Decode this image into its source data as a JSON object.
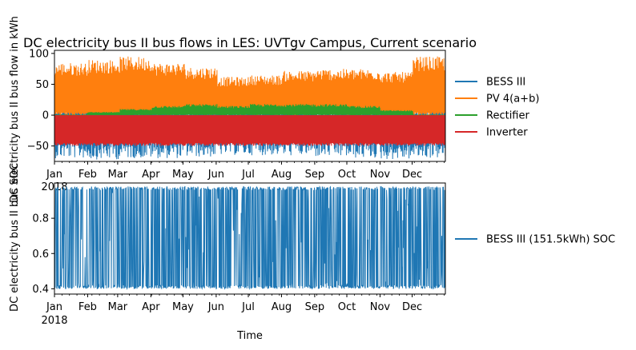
{
  "chart_data": [
    {
      "type": "line",
      "title": "DC electricity bus II bus flows in LES: UVTgv Campus, Current scenario",
      "xlabel": "",
      "ylabel": "DC electricity bus II bus flow in kWh",
      "x_tick_labels": [
        "Jan",
        "Feb",
        "Mar",
        "Apr",
        "May",
        "Jun",
        "Jul",
        "Aug",
        "Sep",
        "Oct",
        "Nov",
        "Dec"
      ],
      "x_year_label": "2018",
      "yticks": [
        -50,
        0,
        50,
        100
      ],
      "ylim": [
        -75,
        105
      ],
      "legend_position": "right",
      "months": [
        "Jan",
        "Feb",
        "Mar",
        "Apr",
        "May",
        "Jun",
        "Jul",
        "Aug",
        "Sep",
        "Oct",
        "Nov",
        "Dec"
      ],
      "series": [
        {
          "name": "BESS III",
          "color": "#1f77b4",
          "monthly_max": [
            15,
            10,
            12,
            8,
            6,
            5,
            5,
            6,
            8,
            10,
            12,
            15
          ],
          "monthly_min": [
            -70,
            -72,
            -70,
            -70,
            -68,
            -65,
            -65,
            -66,
            -68,
            -70,
            -72,
            -70
          ]
        },
        {
          "name": "PV 4(a+b)",
          "color": "#ff7f0e",
          "monthly_max": [
            85,
            90,
            95,
            85,
            78,
            62,
            65,
            72,
            75,
            75,
            70,
            95
          ],
          "monthly_min": [
            0,
            0,
            0,
            0,
            0,
            0,
            0,
            0,
            0,
            0,
            0,
            0
          ]
        },
        {
          "name": "Rectifier",
          "color": "#2ca02c",
          "monthly_max": [
            0,
            5,
            10,
            15,
            18,
            15,
            18,
            18,
            18,
            15,
            8,
            0
          ],
          "monthly_min": [
            0,
            0,
            0,
            0,
            0,
            0,
            0,
            0,
            0,
            0,
            0,
            0
          ]
        },
        {
          "name": "Inverter",
          "color": "#d62728",
          "monthly_max": [
            0,
            0,
            0,
            0,
            0,
            0,
            0,
            0,
            0,
            0,
            0,
            0
          ],
          "monthly_min": [
            -50,
            -50,
            -50,
            -50,
            -50,
            -50,
            -50,
            -50,
            -50,
            -50,
            -50,
            -50
          ]
        }
      ]
    },
    {
      "type": "line",
      "title": "",
      "xlabel": "Time",
      "ylabel": "DC electricity bus II bus SOC",
      "x_tick_labels": [
        "Jan",
        "Feb",
        "Mar",
        "Apr",
        "May",
        "Jun",
        "Jul",
        "Aug",
        "Sep",
        "Oct",
        "Nov",
        "Dec"
      ],
      "x_year_label": "2018",
      "yticks": [
        0.4,
        0.6,
        0.8
      ],
      "ylim": [
        0.37,
        1.0
      ],
      "legend_position": "right",
      "months": [
        "Jan",
        "Feb",
        "Mar",
        "Apr",
        "May",
        "Jun",
        "Jul",
        "Aug",
        "Sep",
        "Oct",
        "Nov",
        "Dec"
      ],
      "series": [
        {
          "name": "BESS III (151.5kWh) SOC",
          "color": "#1f77b4",
          "monthly_max": [
            0.98,
            0.98,
            0.98,
            0.98,
            0.98,
            0.98,
            0.98,
            0.98,
            0.98,
            0.98,
            0.98,
            0.98
          ],
          "monthly_min": [
            0.4,
            0.4,
            0.4,
            0.4,
            0.4,
            0.4,
            0.4,
            0.4,
            0.4,
            0.4,
            0.4,
            0.4
          ]
        }
      ]
    }
  ]
}
